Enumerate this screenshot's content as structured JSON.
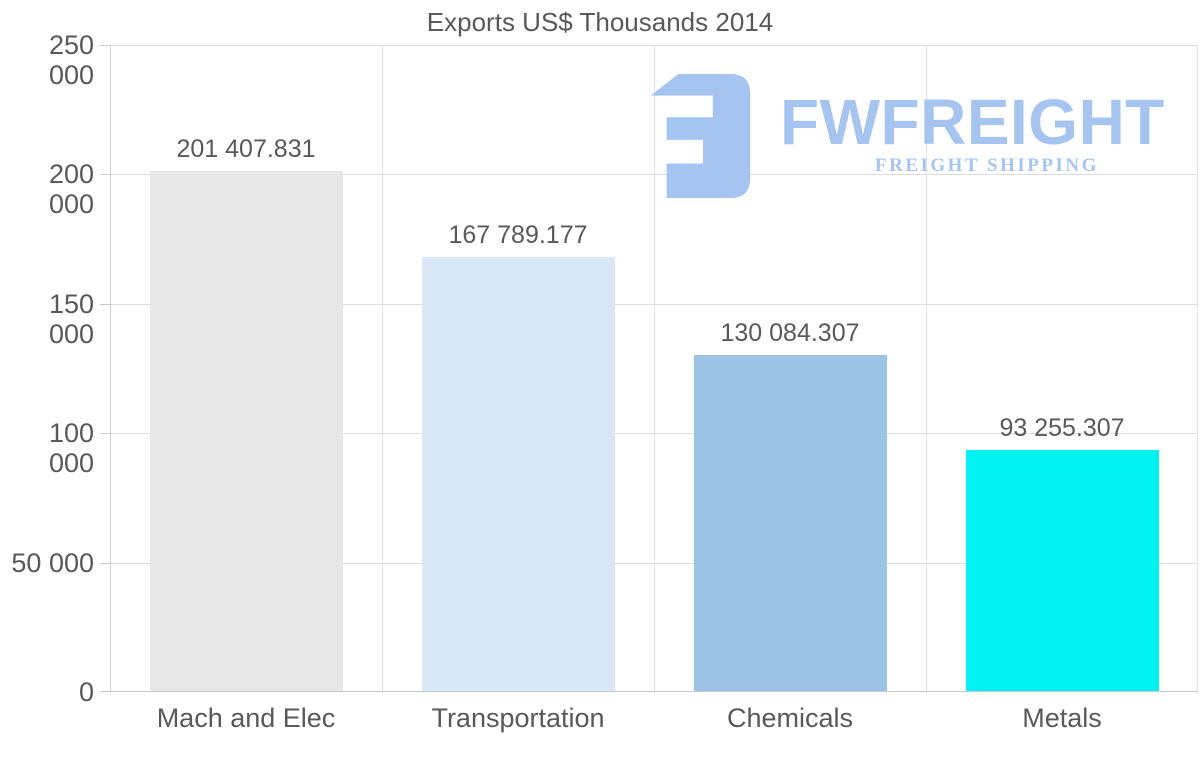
{
  "chart_data": {
    "type": "bar",
    "title": "Exports US$ Thousands 2014",
    "categories": [
      "Mach and Elec",
      "Transportation",
      "Chemicals",
      "Metals"
    ],
    "values": [
      201407.831,
      167789.177,
      130084.307,
      93255.307
    ],
    "value_labels": [
      "201 407.831",
      "167 789.177",
      "130 084.307",
      "93 255.307"
    ],
    "bar_colors": [
      "#e7e7e7",
      "#d9e8f8",
      "#9cc3e6",
      "#00f2f2"
    ],
    "ylim": [
      0,
      250000
    ],
    "ytick_interval": 50000,
    "yticks": [
      0,
      50000,
      100000,
      150000,
      200000,
      250000
    ],
    "ytick_labels": [
      "0",
      "50 000",
      "100 000",
      "150 000",
      "200 000",
      "250 000"
    ],
    "xlabel": "",
    "ylabel": "",
    "grid": "on",
    "legend": "none",
    "text_color": "#595959"
  },
  "watermark": {
    "brand": "FWFREIGHT",
    "tagline": "FREIGHT SHIPPING",
    "color": "#a6c4f0"
  }
}
